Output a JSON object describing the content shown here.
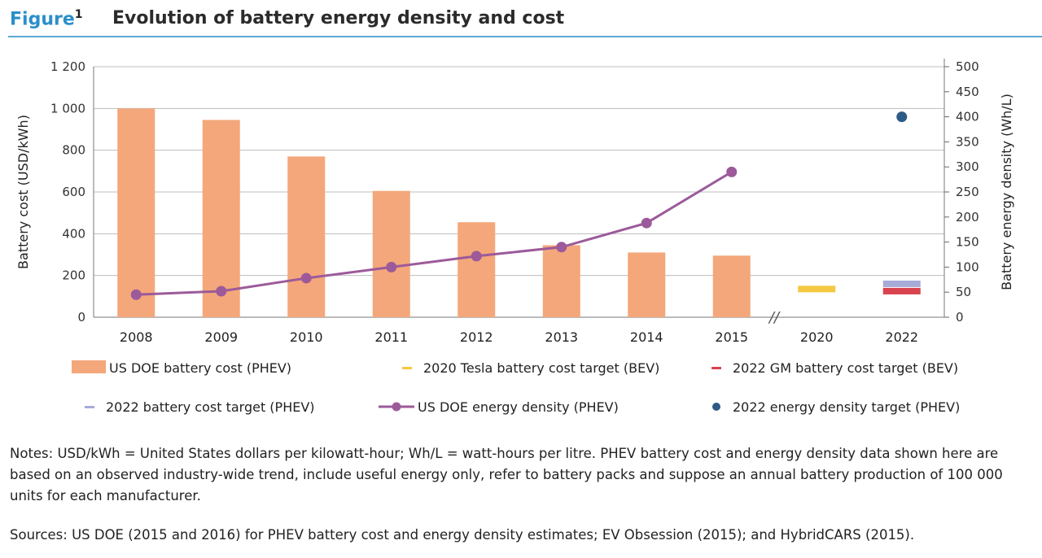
{
  "figure": {
    "label": "Figure",
    "number": "1",
    "title": "Evolution of battery energy density and cost"
  },
  "chart_data": {
    "type": "bar",
    "categories": [
      "2008",
      "2009",
      "2010",
      "2011",
      "2012",
      "2013",
      "2014",
      "2015",
      "2020",
      "2022"
    ],
    "ylabel_left": "Battery cost (USD/kWh)",
    "ylabel_right": "Battery energy density (Wh/L)",
    "ylim_left": [
      0,
      1200
    ],
    "ylim_right": [
      0,
      500
    ],
    "yticks_left": [
      "0",
      "200",
      "400",
      "600",
      "800",
      "1 000",
      "1 200"
    ],
    "yticks_right": [
      "0",
      "50",
      "100",
      "150",
      "200",
      "250",
      "300",
      "350",
      "400",
      "450",
      "500"
    ],
    "axis_break": "//",
    "series": [
      {
        "name": "US DOE battery cost (PHEV)",
        "kind": "bar",
        "axis": "left",
        "color": "#f4a77a",
        "x": [
          "2008",
          "2009",
          "2010",
          "2011",
          "2012",
          "2013",
          "2014",
          "2015"
        ],
        "values": [
          1000,
          945,
          770,
          605,
          455,
          345,
          310,
          295
        ]
      },
      {
        "name": "2020 Tesla battery cost target (BEV)",
        "kind": "target",
        "axis": "left",
        "color": "#f5c842",
        "x": [
          "2020"
        ],
        "values": [
          135
        ]
      },
      {
        "name": "2022 GM battery cost target (BEV)",
        "kind": "target",
        "axis": "left",
        "color": "#d9434e",
        "x": [
          "2022"
        ],
        "values": [
          125
        ]
      },
      {
        "name": "2022 battery cost target (PHEV)",
        "kind": "target",
        "axis": "left",
        "color": "#a7abd8",
        "x": [
          "2022"
        ],
        "values": [
          160
        ]
      },
      {
        "name": "US DOE energy density (PHEV)",
        "kind": "line",
        "axis": "right",
        "color": "#9c5a9a",
        "x": [
          "2008",
          "2009",
          "2010",
          "2011",
          "2012",
          "2013",
          "2014",
          "2015"
        ],
        "values": [
          45,
          52,
          78,
          100,
          122,
          140,
          188,
          290
        ]
      },
      {
        "name": "2022 energy density target (PHEV)",
        "kind": "point",
        "axis": "right",
        "color": "#2e5a86",
        "x": [
          "2022"
        ],
        "values": [
          400
        ]
      }
    ]
  },
  "notes": "Notes: USD/kWh = United States dollars per kilowatt-hour; Wh/L = watt-hours per litre. PHEV battery cost and energy density data shown here are based on an observed industry-wide trend, include useful energy only, refer to battery packs and suppose an annual battery production of 100 000 units for each manufacturer.",
  "sources": "Sources: US DOE (2015 and 2016) for PHEV battery cost and energy density estimates; EV Obsession (2015); and HybridCARS (2015)."
}
